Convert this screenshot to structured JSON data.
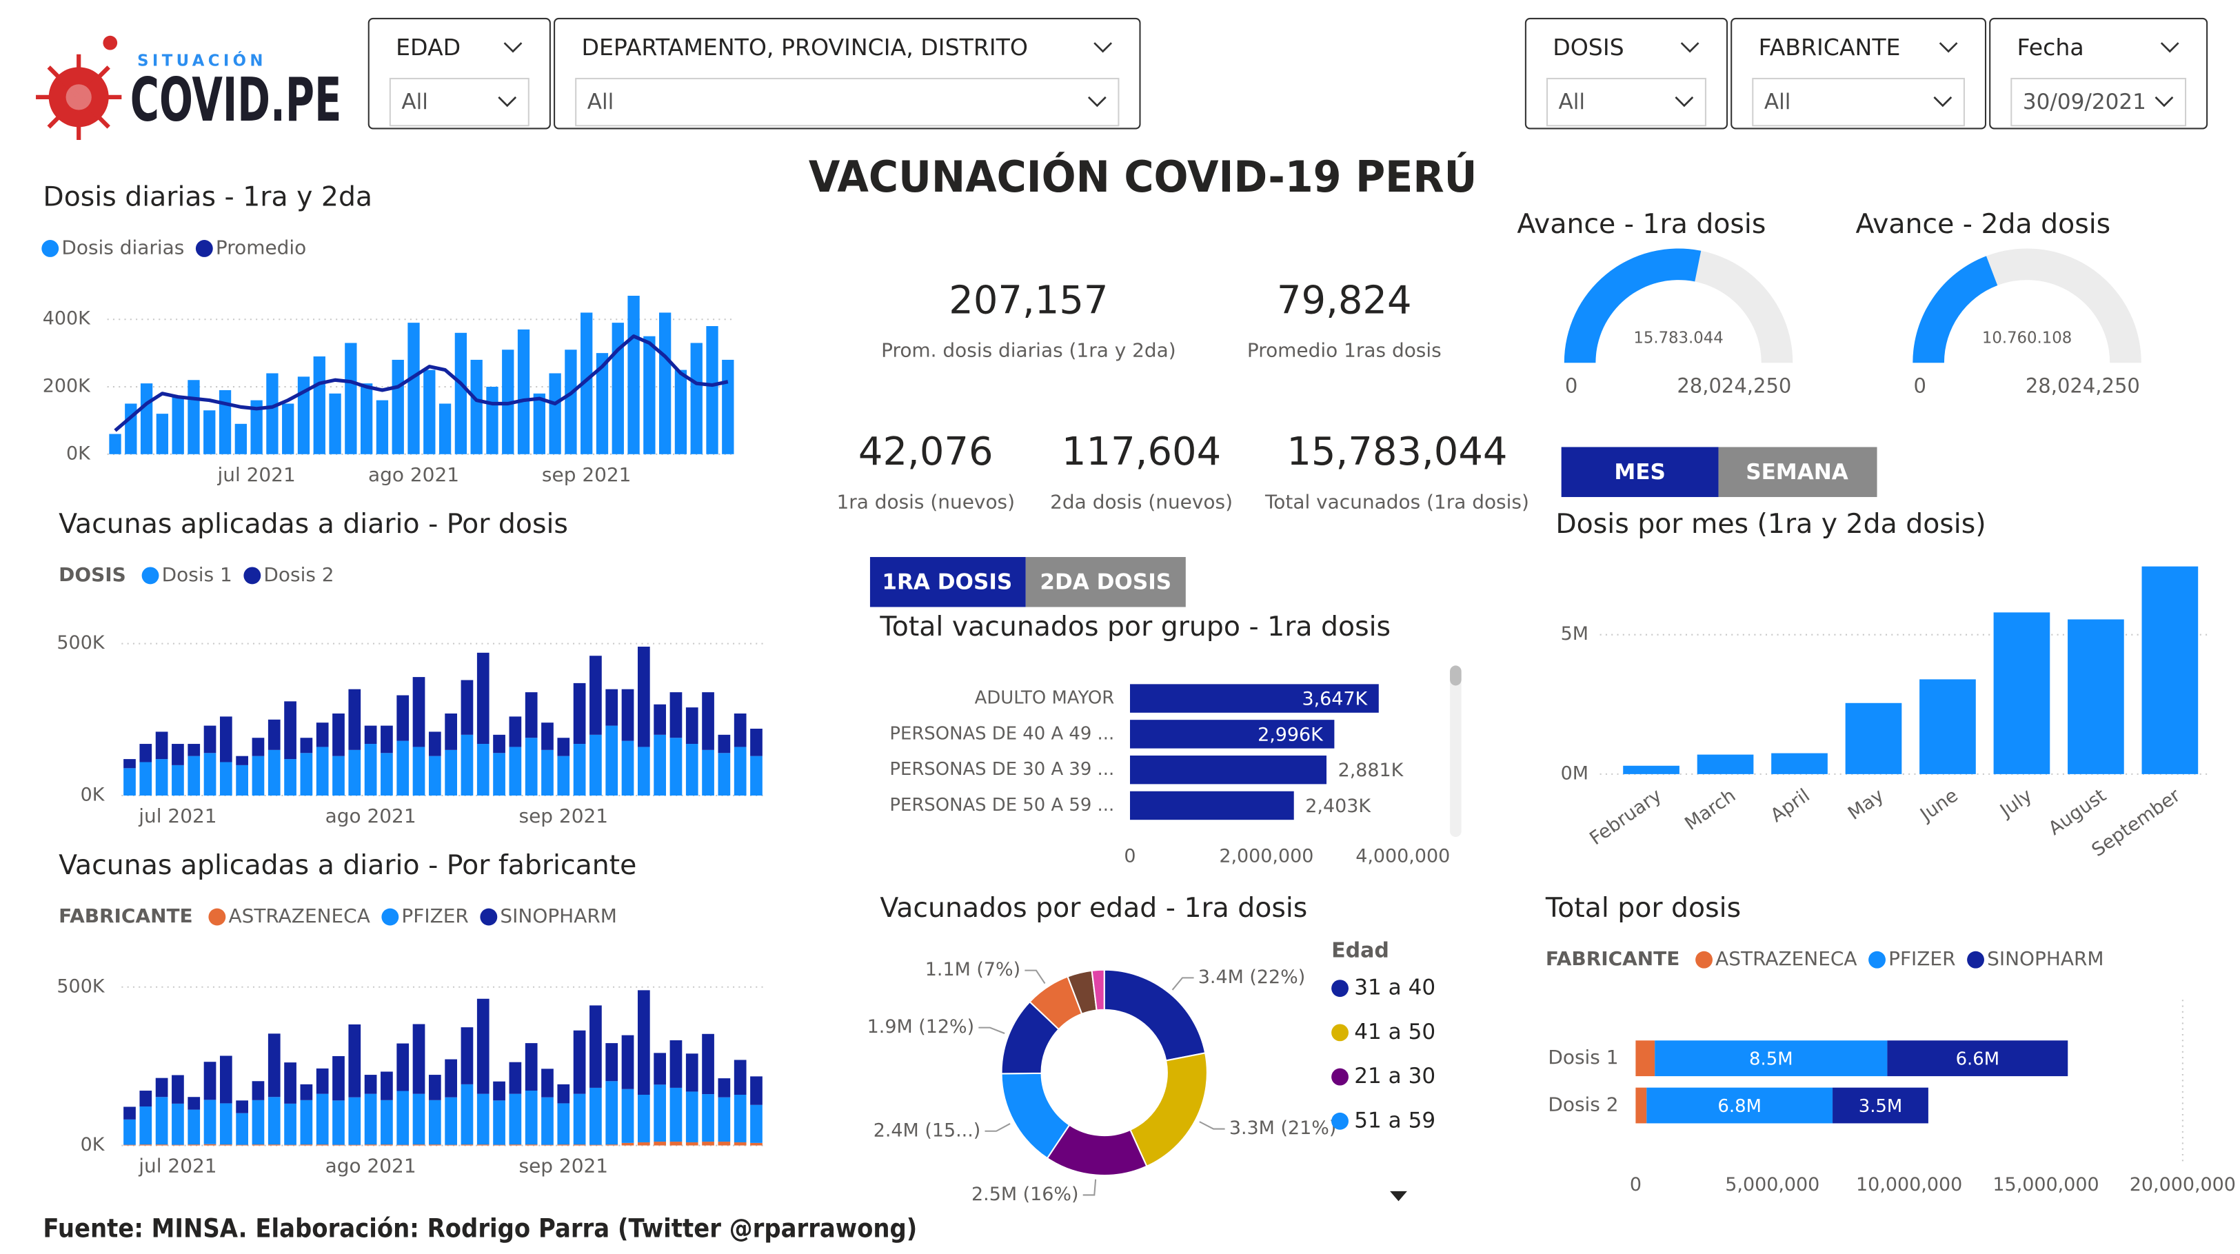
{
  "logo": {
    "small": "SITUACIÓN",
    "big": "COVID.PE"
  },
  "filters": [
    {
      "label": "EDAD",
      "value": "All"
    },
    {
      "label": "DEPARTAMENTO, PROVINCIA, DISTRITO",
      "value": "All"
    },
    {
      "label": "DOSIS",
      "value": "All"
    },
    {
      "label": "FABRICANTE",
      "value": "All"
    },
    {
      "label": "Fecha",
      "value": "30/09/2021"
    }
  ],
  "title": "VACUNACIÓN COVID-19 PERÚ",
  "kpis": [
    {
      "value": "207,157",
      "label": "Prom. dosis diarias (1ra y 2da)"
    },
    {
      "value": "79,824",
      "label": "Promedio 1ras dosis"
    },
    {
      "value": "42,076",
      "label": "1ra dosis (nuevos)"
    },
    {
      "value": "117,604",
      "label": "2da dosis (nuevos)"
    },
    {
      "value": "15,783,044",
      "label": "Total vacunados (1ra dosis)"
    }
  ],
  "period_tabs": [
    "MES",
    "SEMANA"
  ],
  "dose_tabs": [
    "1RA DOSIS",
    "2DA DOSIS"
  ],
  "source": "Fuente: MINSA. Elaboración: Rodrigo Parra (Twitter @rparrawong)",
  "chart_data": [
    {
      "type": "combo",
      "title": "Dosis diarias - 1ra y 2da",
      "categories": [
        null,
        null,
        null,
        null,
        null,
        null,
        null,
        null,
        null,
        "jul 2021",
        null,
        null,
        null,
        null,
        null,
        null,
        null,
        null,
        null,
        "ago 2021",
        null,
        null,
        null,
        null,
        null,
        null,
        null,
        null,
        null,
        null,
        "sep 2021",
        null,
        null,
        null,
        null,
        null,
        null,
        null,
        null,
        null
      ],
      "series": [
        {
          "name": "Dosis diarias",
          "type": "bar",
          "color": "#118DFF",
          "values": [
            60000,
            150000,
            210000,
            120000,
            170000,
            220000,
            130000,
            190000,
            90000,
            160000,
            240000,
            150000,
            230000,
            290000,
            180000,
            330000,
            210000,
            160000,
            280000,
            390000,
            250000,
            150000,
            360000,
            280000,
            200000,
            310000,
            370000,
            180000,
            240000,
            310000,
            420000,
            300000,
            390000,
            470000,
            350000,
            420000,
            250000,
            330000,
            380000,
            280000
          ]
        },
        {
          "name": "Promedio",
          "type": "line",
          "color": "#12239E",
          "values": [
            70000,
            110000,
            150000,
            180000,
            170000,
            165000,
            160000,
            150000,
            140000,
            135000,
            140000,
            160000,
            185000,
            210000,
            220000,
            215000,
            200000,
            190000,
            200000,
            230000,
            260000,
            250000,
            210000,
            160000,
            150000,
            150000,
            160000,
            165000,
            150000,
            180000,
            220000,
            260000,
            310000,
            350000,
            330000,
            290000,
            240000,
            210000,
            205000,
            215000
          ]
        }
      ],
      "ylim": [
        0,
        500000
      ],
      "yticks": [
        {
          "value": 0,
          "label": "0K"
        },
        {
          "value": 200000,
          "label": "200K"
        },
        {
          "value": 400000,
          "label": "400K"
        }
      ],
      "grid": true
    },
    {
      "type": "stacked_bar",
      "title": "Vacunas aplicadas a diario - Por dosis",
      "legend_title": "DOSIS",
      "categories": [
        null,
        null,
        null,
        "jul 2021",
        null,
        null,
        null,
        null,
        null,
        null,
        null,
        null,
        null,
        null,
        null,
        "ago 2021",
        null,
        null,
        null,
        null,
        null,
        null,
        null,
        null,
        null,
        null,
        null,
        "sep 2021",
        null,
        null,
        null,
        null,
        null,
        null,
        null,
        null,
        null,
        null,
        null,
        null
      ],
      "series": [
        {
          "name": "Dosis 1",
          "color": "#118DFF",
          "values": [
            90000,
            110000,
            120000,
            100000,
            130000,
            140000,
            110000,
            100000,
            130000,
            150000,
            120000,
            140000,
            160000,
            130000,
            150000,
            170000,
            140000,
            180000,
            160000,
            130000,
            150000,
            200000,
            170000,
            140000,
            160000,
            190000,
            150000,
            130000,
            170000,
            200000,
            230000,
            180000,
            160000,
            200000,
            190000,
            170000,
            150000,
            140000,
            160000,
            130000
          ]
        },
        {
          "name": "Dosis 2",
          "color": "#12239E",
          "values": [
            30000,
            60000,
            90000,
            70000,
            40000,
            90000,
            150000,
            30000,
            60000,
            100000,
            190000,
            50000,
            80000,
            140000,
            200000,
            60000,
            90000,
            150000,
            230000,
            80000,
            120000,
            180000,
            300000,
            60000,
            100000,
            150000,
            90000,
            60000,
            200000,
            260000,
            120000,
            170000,
            330000,
            100000,
            150000,
            120000,
            190000,
            60000,
            110000,
            90000
          ]
        }
      ],
      "ylim": [
        0,
        550000
      ],
      "yticks": [
        {
          "value": 0,
          "label": "0K"
        },
        {
          "value": 500000,
          "label": "500K"
        }
      ],
      "grid": true
    },
    {
      "type": "stacked_bar",
      "title": "Vacunas aplicadas a diario - Por fabricante",
      "legend_title": "FABRICANTE",
      "categories": [
        null,
        null,
        null,
        "jul 2021",
        null,
        null,
        null,
        null,
        null,
        null,
        null,
        null,
        null,
        null,
        null,
        "ago 2021",
        null,
        null,
        null,
        null,
        null,
        null,
        null,
        null,
        null,
        null,
        null,
        "sep 2021",
        null,
        null,
        null,
        null,
        null,
        null,
        null,
        null,
        null,
        null,
        null,
        null
      ],
      "series": [
        {
          "name": "ASTRAZENECA",
          "color": "#E66C37",
          "values": [
            2000,
            3000,
            3000,
            2000,
            3000,
            4000,
            3000,
            2000,
            3000,
            3000,
            2000,
            3000,
            3000,
            2000,
            2000,
            3000,
            3000,
            2000,
            3000,
            3000,
            2000,
            3000,
            3000,
            2000,
            3000,
            3000,
            2000,
            3000,
            3000,
            2000,
            3000,
            8000,
            10000,
            12000,
            12000,
            10000,
            12000,
            12000,
            10000,
            8000
          ]
        },
        {
          "name": "PFIZER",
          "color": "#118DFF",
          "values": [
            80000,
            120000,
            150000,
            130000,
            110000,
            140000,
            130000,
            100000,
            140000,
            150000,
            130000,
            140000,
            160000,
            140000,
            150000,
            160000,
            140000,
            170000,
            160000,
            140000,
            150000,
            190000,
            160000,
            140000,
            160000,
            170000,
            150000,
            130000,
            160000,
            180000,
            200000,
            170000,
            150000,
            180000,
            170000,
            160000,
            150000,
            140000,
            150000,
            120000
          ]
        },
        {
          "name": "SINOPHARM",
          "color": "#12239E",
          "values": [
            40000,
            50000,
            60000,
            90000,
            40000,
            120000,
            150000,
            40000,
            60000,
            200000,
            130000,
            50000,
            80000,
            140000,
            230000,
            60000,
            90000,
            150000,
            220000,
            80000,
            120000,
            180000,
            300000,
            60000,
            100000,
            150000,
            90000,
            60000,
            200000,
            260000,
            120000,
            170000,
            330000,
            100000,
            150000,
            120000,
            190000,
            60000,
            110000,
            90000
          ]
        }
      ],
      "ylim": [
        0,
        550000
      ],
      "yticks": [
        {
          "value": 0,
          "label": "0K"
        },
        {
          "value": 500000,
          "label": "500K"
        }
      ],
      "grid": true
    },
    {
      "type": "hbar",
      "title": "Total vacunados por grupo - 1ra dosis",
      "categories": [
        "ADULTO MAYOR",
        "PERSONAS DE 40 A 49 ...",
        "PERSONAS DE 30 A 39 ...",
        "PERSONAS DE 50 A 59 ..."
      ],
      "values": [
        3647000,
        2996000,
        2881000,
        2403000
      ],
      "value_labels": [
        "3,647K",
        "2,996K",
        "2,881K",
        "2,403K"
      ],
      "color": "#12239E",
      "xlim": [
        0,
        4000000
      ],
      "xticks": [
        0,
        {
          "value": 2000000,
          "label": "2,000,000"
        },
        {
          "value": 4000000,
          "label": "4,000,000"
        }
      ]
    },
    {
      "type": "donut",
      "title": "Vacunados por edad - 1ra dosis",
      "legend_title": "Edad",
      "categories": [
        "31 a 40",
        "41 a 50",
        "21 a 30",
        "51 a 59",
        null,
        null,
        null,
        null
      ],
      "values": [
        3400000,
        3300000,
        2500000,
        2400000,
        1900000,
        1100000,
        600000,
        300000
      ],
      "value_labels": [
        "3.4M (22%)",
        "3.3M (21%)",
        "2.5M (16%)",
        "2.4M (15...)",
        "1.9M (12%)",
        "1.1M (7%)",
        null,
        null
      ],
      "colors": [
        "#12239E",
        "#D9B300",
        "#6B007B",
        "#118DFF",
        "#12239E",
        "#E66C37",
        "#744430",
        "#E044A7"
      ]
    },
    {
      "type": "gauge",
      "title": "Avance - 1ra dosis",
      "value": 15783044,
      "value_label": "15.783.044",
      "min": 0,
      "max": 28024250,
      "max_label": "28,024,250",
      "color": "#118DFF"
    },
    {
      "type": "gauge",
      "title": "Avance - 2da dosis",
      "value": 10760108,
      "value_label": "10.760.108",
      "min": 0,
      "max": 28024250,
      "max_label": "28,024,250",
      "color": "#118DFF"
    },
    {
      "type": "bar",
      "title": "Dosis por mes (1ra y 2da dosis)",
      "categories": [
        "February",
        "March",
        "April",
        "May",
        "June",
        "July",
        "August",
        "September"
      ],
      "values": [
        300000,
        700000,
        750000,
        2550000,
        3400000,
        5800000,
        5550000,
        7450000
      ],
      "color": "#118DFF",
      "ylim": [
        0,
        8300000
      ],
      "yticks": [
        {
          "value": 0,
          "label": "0M"
        },
        {
          "value": 5000000,
          "label": "5M"
        }
      ],
      "grid": true
    },
    {
      "type": "stacked_hbar",
      "title": "Total por dosis",
      "legend_title": "FABRICANTE",
      "categories": [
        "Dosis 1",
        "Dosis 2"
      ],
      "series": [
        {
          "name": "ASTRAZENECA",
          "color": "#E66C37",
          "values": [
            700000,
            400000
          ]
        },
        {
          "name": "PFIZER",
          "color": "#118DFF",
          "values": [
            8500000,
            6800000
          ],
          "value_labels": [
            "8.5M",
            "6.8M"
          ]
        },
        {
          "name": "SINOPHARM",
          "color": "#12239E",
          "values": [
            6600000,
            3500000
          ],
          "value_labels": [
            "6.6M",
            "3.5M"
          ]
        }
      ],
      "xlim": [
        0,
        20000000
      ],
      "xticks": [
        0,
        {
          "value": 5000000,
          "label": "5,000,000"
        },
        {
          "value": 10000000,
          "label": "10,000,000"
        },
        {
          "value": 15000000,
          "label": "15,000,000"
        },
        {
          "value": 20000000,
          "label": "20,000,000"
        }
      ]
    }
  ]
}
